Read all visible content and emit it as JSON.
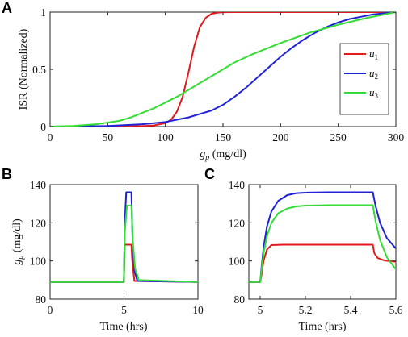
{
  "chart_data": [
    {
      "panel": "A",
      "type": "line",
      "xlabel": "g_p (mg/dl)",
      "ylabel": "ISR (Normalized)",
      "xlim": [
        0,
        300
      ],
      "ylim": [
        0,
        1
      ],
      "xticks": [
        0,
        50,
        100,
        150,
        200,
        250,
        300
      ],
      "yticks": [
        0,
        0.5,
        1
      ],
      "ytick_labels": [
        "0",
        "0.5",
        "1"
      ],
      "legend_position": "right",
      "series": [
        {
          "name": "u1",
          "color": "#e31a1c",
          "x": [
            0,
            60,
            80,
            90,
            100,
            105,
            110,
            115,
            120,
            125,
            130,
            135,
            140,
            145,
            150,
            160,
            180,
            200,
            250,
            300
          ],
          "y": [
            0,
            0.001,
            0.004,
            0.01,
            0.03,
            0.06,
            0.13,
            0.26,
            0.47,
            0.7,
            0.87,
            0.95,
            0.985,
            0.995,
            0.999,
            1,
            1,
            1,
            1,
            1
          ]
        },
        {
          "name": "u2",
          "color": "#1f23d6",
          "x": [
            0,
            50,
            80,
            100,
            120,
            140,
            150,
            160,
            170,
            180,
            190,
            200,
            210,
            220,
            230,
            240,
            250,
            260,
            270,
            280,
            290,
            300
          ],
          "y": [
            0,
            0.005,
            0.02,
            0.04,
            0.08,
            0.14,
            0.19,
            0.26,
            0.34,
            0.43,
            0.52,
            0.61,
            0.69,
            0.76,
            0.82,
            0.87,
            0.91,
            0.94,
            0.96,
            0.98,
            0.99,
            1
          ]
        },
        {
          "name": "u3",
          "color": "#33dd33",
          "x": [
            0,
            20,
            40,
            60,
            70,
            80,
            90,
            100,
            110,
            120,
            130,
            140,
            150,
            160,
            175,
            200,
            225,
            250,
            275,
            300
          ],
          "y": [
            0,
            0.005,
            0.02,
            0.05,
            0.08,
            0.12,
            0.16,
            0.21,
            0.26,
            0.32,
            0.38,
            0.44,
            0.5,
            0.56,
            0.63,
            0.73,
            0.82,
            0.89,
            0.95,
            1
          ]
        }
      ]
    },
    {
      "panel": "B",
      "type": "line",
      "xlabel": "Time (hrs)",
      "ylabel": "g_p (mg/dl)",
      "xlim": [
        0,
        10
      ],
      "ylim": [
        80,
        140
      ],
      "xticks": [
        0,
        5,
        10
      ],
      "yticks": [
        80,
        100,
        120,
        140
      ],
      "series": [
        {
          "name": "u1",
          "color": "#e31a1c",
          "x": [
            0,
            4.99,
            5.05,
            5.5,
            5.55,
            5.7,
            10
          ],
          "y": [
            89,
            89,
            108.5,
            108.5,
            101,
            89.5,
            89
          ]
        },
        {
          "name": "u2",
          "color": "#1f23d6",
          "x": [
            0,
            4.99,
            5.05,
            5.15,
            5.5,
            5.58,
            5.7,
            5.9,
            10
          ],
          "y": [
            89,
            89,
            120,
            136,
            136,
            110,
            95,
            89.5,
            89
          ]
        },
        {
          "name": "u3",
          "color": "#33dd33",
          "x": [
            0,
            4.99,
            5.05,
            5.2,
            5.5,
            5.6,
            5.75,
            6.0,
            10
          ],
          "y": [
            89,
            89,
            115,
            129,
            129,
            110,
            96,
            90,
            89
          ]
        }
      ]
    },
    {
      "panel": "C",
      "type": "line",
      "xlabel": "Time (hrs)",
      "ylabel": "",
      "xlim": [
        4.95,
        5.6
      ],
      "ylim": [
        80,
        140
      ],
      "xticks": [
        5,
        5.2,
        5.4,
        5.6
      ],
      "yticks": [
        80,
        100,
        120,
        140
      ],
      "series": [
        {
          "name": "u1",
          "color": "#e31a1c",
          "x": [
            4.95,
            5.0,
            5.005,
            5.015,
            5.03,
            5.05,
            5.1,
            5.2,
            5.3,
            5.4,
            5.498,
            5.505,
            5.52,
            5.55,
            5.6
          ],
          "y": [
            89,
            89,
            92,
            100,
            106,
            108.3,
            108.5,
            108.5,
            108.5,
            108.5,
            108.5,
            104,
            101.5,
            100.2,
            99.6
          ]
        },
        {
          "name": "u2",
          "color": "#1f23d6",
          "x": [
            4.95,
            5.0,
            5.005,
            5.015,
            5.03,
            5.05,
            5.08,
            5.12,
            5.16,
            5.2,
            5.3,
            5.4,
            5.498,
            5.51,
            5.53,
            5.56,
            5.6
          ],
          "y": [
            89,
            89,
            95,
            107,
            118,
            126,
            131.5,
            134.5,
            135.5,
            135.8,
            136,
            136,
            136,
            129,
            120,
            112,
            106.5
          ]
        },
        {
          "name": "u3",
          "color": "#33dd33",
          "x": [
            4.95,
            5.0,
            5.005,
            5.015,
            5.03,
            5.05,
            5.08,
            5.12,
            5.16,
            5.2,
            5.3,
            5.4,
            5.498,
            5.51,
            5.53,
            5.56,
            5.6
          ],
          "y": [
            89,
            89,
            94,
            104,
            113,
            120,
            125,
            127.5,
            128.6,
            129,
            129.2,
            129.2,
            129.2,
            121,
            111,
            102,
            95.5
          ]
        }
      ]
    }
  ],
  "legend": {
    "items": [
      {
        "label": "u",
        "sub": "1",
        "color": "#e31a1c"
      },
      {
        "label": "u",
        "sub": "2",
        "color": "#1f23d6"
      },
      {
        "label": "u",
        "sub": "3",
        "color": "#33dd33"
      }
    ]
  },
  "panels": {
    "a_letter": "A",
    "b_letter": "B",
    "c_letter": "C"
  }
}
